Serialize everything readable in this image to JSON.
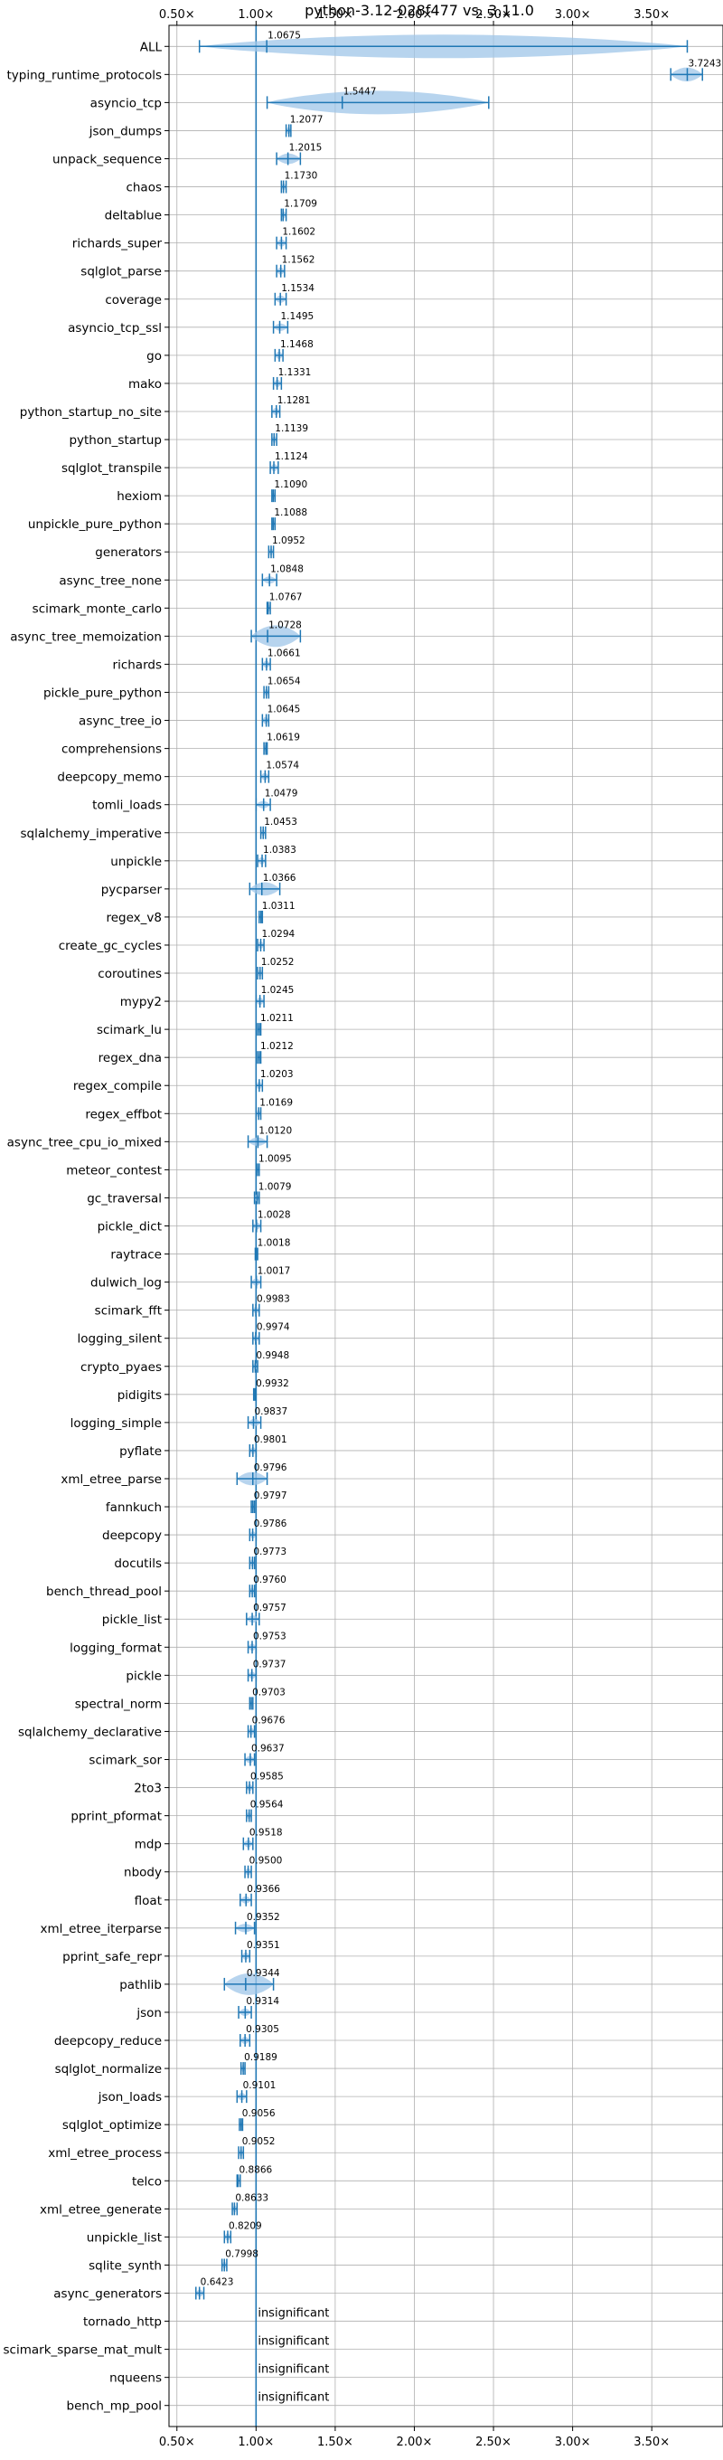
{
  "chart_data": {
    "type": "violin",
    "title": "python-3.12-028f477 vs. 3.11.0",
    "xlim": [
      0.45,
      3.95
    ],
    "xticks": [
      0.5,
      1.0,
      1.5,
      2.0,
      2.5,
      3.0,
      3.5
    ],
    "xtick_labels": [
      "0.50×",
      "1.00×",
      "1.50×",
      "2.00×",
      "2.50×",
      "3.00×",
      "3.50×"
    ],
    "reference_line": 1.0,
    "grid": true,
    "color": "#1f77b4",
    "fill_color": "#9fc5e8",
    "benchmarks": [
      {
        "name": "ALL",
        "label": "1.0675",
        "mean": 1.0675,
        "min": 0.6423,
        "max": 3.7243
      },
      {
        "name": "typing_runtime_protocols",
        "label": "3.7243",
        "mean": 3.7243,
        "min": 3.62,
        "max": 3.82
      },
      {
        "name": "asyncio_tcp",
        "label": "1.5447",
        "mean": 1.5447,
        "min": 1.07,
        "max": 2.47
      },
      {
        "name": "json_dumps",
        "label": "1.2077",
        "mean": 1.2077,
        "min": 1.19,
        "max": 1.22
      },
      {
        "name": "unpack_sequence",
        "label": "1.2015",
        "mean": 1.2015,
        "min": 1.13,
        "max": 1.28
      },
      {
        "name": "chaos",
        "label": "1.1730",
        "mean": 1.173,
        "min": 1.16,
        "max": 1.19
      },
      {
        "name": "deltablue",
        "label": "1.1709",
        "mean": 1.1709,
        "min": 1.16,
        "max": 1.19
      },
      {
        "name": "richards_super",
        "label": "1.1602",
        "mean": 1.1602,
        "min": 1.13,
        "max": 1.19
      },
      {
        "name": "sqlglot_parse",
        "label": "1.1562",
        "mean": 1.1562,
        "min": 1.13,
        "max": 1.18
      },
      {
        "name": "coverage",
        "label": "1.1534",
        "mean": 1.1534,
        "min": 1.12,
        "max": 1.19
      },
      {
        "name": "asyncio_tcp_ssl",
        "label": "1.1495",
        "mean": 1.1495,
        "min": 1.11,
        "max": 1.2
      },
      {
        "name": "go",
        "label": "1.1468",
        "mean": 1.1468,
        "min": 1.12,
        "max": 1.17
      },
      {
        "name": "mako",
        "label": "1.1331",
        "mean": 1.1331,
        "min": 1.11,
        "max": 1.16
      },
      {
        "name": "python_startup_no_site",
        "label": "1.1281",
        "mean": 1.1281,
        "min": 1.1,
        "max": 1.15
      },
      {
        "name": "python_startup",
        "label": "1.1139",
        "mean": 1.1139,
        "min": 1.1,
        "max": 1.13
      },
      {
        "name": "sqlglot_transpile",
        "label": "1.1124",
        "mean": 1.1124,
        "min": 1.09,
        "max": 1.14
      },
      {
        "name": "hexiom",
        "label": "1.1090",
        "mean": 1.109,
        "min": 1.1,
        "max": 1.12
      },
      {
        "name": "unpickle_pure_python",
        "label": "1.1088",
        "mean": 1.1088,
        "min": 1.1,
        "max": 1.12
      },
      {
        "name": "generators",
        "label": "1.0952",
        "mean": 1.0952,
        "min": 1.08,
        "max": 1.11
      },
      {
        "name": "async_tree_none",
        "label": "1.0848",
        "mean": 1.0848,
        "min": 1.04,
        "max": 1.13
      },
      {
        "name": "scimark_monte_carlo",
        "label": "1.0767",
        "mean": 1.0767,
        "min": 1.07,
        "max": 1.09
      },
      {
        "name": "async_tree_memoization",
        "label": "1.0728",
        "mean": 1.0728,
        "min": 0.97,
        "max": 1.28
      },
      {
        "name": "richards",
        "label": "1.0661",
        "mean": 1.0661,
        "min": 1.04,
        "max": 1.09
      },
      {
        "name": "pickle_pure_python",
        "label": "1.0654",
        "mean": 1.0654,
        "min": 1.05,
        "max": 1.08
      },
      {
        "name": "async_tree_io",
        "label": "1.0645",
        "mean": 1.0645,
        "min": 1.04,
        "max": 1.08
      },
      {
        "name": "comprehensions",
        "label": "1.0619",
        "mean": 1.0619,
        "min": 1.05,
        "max": 1.07
      },
      {
        "name": "deepcopy_memo",
        "label": "1.0574",
        "mean": 1.0574,
        "min": 1.03,
        "max": 1.08
      },
      {
        "name": "tomli_loads",
        "label": "1.0479",
        "mean": 1.0479,
        "min": 1.0,
        "max": 1.09
      },
      {
        "name": "sqlalchemy_imperative",
        "label": "1.0453",
        "mean": 1.0453,
        "min": 1.03,
        "max": 1.06
      },
      {
        "name": "unpickle",
        "label": "1.0383",
        "mean": 1.0383,
        "min": 1.01,
        "max": 1.06
      },
      {
        "name": "pycparser",
        "label": "1.0366",
        "mean": 1.0366,
        "min": 0.96,
        "max": 1.15
      },
      {
        "name": "regex_v8",
        "label": "1.0311",
        "mean": 1.0311,
        "min": 1.02,
        "max": 1.04
      },
      {
        "name": "create_gc_cycles",
        "label": "1.0294",
        "mean": 1.0294,
        "min": 1.01,
        "max": 1.05
      },
      {
        "name": "coroutines",
        "label": "1.0252",
        "mean": 1.0252,
        "min": 1.01,
        "max": 1.04
      },
      {
        "name": "mypy2",
        "label": "1.0245",
        "mean": 1.0245,
        "min": 1.0,
        "max": 1.05
      },
      {
        "name": "scimark_lu",
        "label": "1.0211",
        "mean": 1.0211,
        "min": 1.01,
        "max": 1.03
      },
      {
        "name": "regex_dna",
        "label": "1.0212",
        "mean": 1.0212,
        "min": 1.01,
        "max": 1.03
      },
      {
        "name": "regex_compile",
        "label": "1.0203",
        "mean": 1.0203,
        "min": 1.0,
        "max": 1.04
      },
      {
        "name": "regex_effbot",
        "label": "1.0169",
        "mean": 1.0169,
        "min": 1.0,
        "max": 1.03
      },
      {
        "name": "async_tree_cpu_io_mixed",
        "label": "1.0120",
        "mean": 1.012,
        "min": 0.95,
        "max": 1.07
      },
      {
        "name": "meteor_contest",
        "label": "1.0095",
        "mean": 1.0095,
        "min": 1.0,
        "max": 1.02
      },
      {
        "name": "gc_traversal",
        "label": "1.0079",
        "mean": 1.0079,
        "min": 0.99,
        "max": 1.02
      },
      {
        "name": "pickle_dict",
        "label": "1.0028",
        "mean": 1.0028,
        "min": 0.98,
        "max": 1.03
      },
      {
        "name": "raytrace",
        "label": "1.0018",
        "mean": 1.0018,
        "min": 0.995,
        "max": 1.01
      },
      {
        "name": "dulwich_log",
        "label": "1.0017",
        "mean": 1.0017,
        "min": 0.97,
        "max": 1.03
      },
      {
        "name": "scimark_fft",
        "label": "0.9983",
        "mean": 0.9983,
        "min": 0.98,
        "max": 1.02
      },
      {
        "name": "logging_silent",
        "label": "0.9974",
        "mean": 0.9974,
        "min": 0.98,
        "max": 1.02
      },
      {
        "name": "crypto_pyaes",
        "label": "0.9948",
        "mean": 0.9948,
        "min": 0.98,
        "max": 1.01
      },
      {
        "name": "pidigits",
        "label": "0.9932",
        "mean": 0.9932,
        "min": 0.985,
        "max": 1.0
      },
      {
        "name": "logging_simple",
        "label": "0.9837",
        "mean": 0.9837,
        "min": 0.95,
        "max": 1.03
      },
      {
        "name": "pyflate",
        "label": "0.9801",
        "mean": 0.9801,
        "min": 0.96,
        "max": 1.0
      },
      {
        "name": "xml_etree_parse",
        "label": "0.9796",
        "mean": 0.9796,
        "min": 0.88,
        "max": 1.07
      },
      {
        "name": "fannkuch",
        "label": "0.9797",
        "mean": 0.9797,
        "min": 0.97,
        "max": 0.99
      },
      {
        "name": "deepcopy",
        "label": "0.9786",
        "mean": 0.9786,
        "min": 0.96,
        "max": 1.0
      },
      {
        "name": "docutils",
        "label": "0.9773",
        "mean": 0.9773,
        "min": 0.96,
        "max": 0.99
      },
      {
        "name": "bench_thread_pool",
        "label": "0.9760",
        "mean": 0.976,
        "min": 0.96,
        "max": 0.99
      },
      {
        "name": "pickle_list",
        "label": "0.9757",
        "mean": 0.9757,
        "min": 0.94,
        "max": 1.02
      },
      {
        "name": "logging_format",
        "label": "0.9753",
        "mean": 0.9753,
        "min": 0.95,
        "max": 1.0
      },
      {
        "name": "pickle",
        "label": "0.9737",
        "mean": 0.9737,
        "min": 0.95,
        "max": 1.0
      },
      {
        "name": "spectral_norm",
        "label": "0.9703",
        "mean": 0.9703,
        "min": 0.96,
        "max": 0.98
      },
      {
        "name": "sqlalchemy_declarative",
        "label": "0.9676",
        "mean": 0.9676,
        "min": 0.95,
        "max": 0.99
      },
      {
        "name": "scimark_sor",
        "label": "0.9637",
        "mean": 0.9637,
        "min": 0.93,
        "max": 0.99
      },
      {
        "name": "2to3",
        "label": "0.9585",
        "mean": 0.9585,
        "min": 0.94,
        "max": 0.98
      },
      {
        "name": "pprint_pformat",
        "label": "0.9564",
        "mean": 0.9564,
        "min": 0.94,
        "max": 0.97
      },
      {
        "name": "mdp",
        "label": "0.9518",
        "mean": 0.9518,
        "min": 0.92,
        "max": 0.98
      },
      {
        "name": "nbody",
        "label": "0.9500",
        "mean": 0.95,
        "min": 0.93,
        "max": 0.97
      },
      {
        "name": "float",
        "label": "0.9366",
        "mean": 0.9366,
        "min": 0.9,
        "max": 0.97
      },
      {
        "name": "xml_etree_iterparse",
        "label": "0.9352",
        "mean": 0.9352,
        "min": 0.87,
        "max": 0.99
      },
      {
        "name": "pprint_safe_repr",
        "label": "0.9351",
        "mean": 0.9351,
        "min": 0.91,
        "max": 0.96
      },
      {
        "name": "pathlib",
        "label": "0.9344",
        "mean": 0.9344,
        "min": 0.8,
        "max": 1.11
      },
      {
        "name": "json",
        "label": "0.9314",
        "mean": 0.9314,
        "min": 0.89,
        "max": 0.97
      },
      {
        "name": "deepcopy_reduce",
        "label": "0.9305",
        "mean": 0.9305,
        "min": 0.9,
        "max": 0.96
      },
      {
        "name": "sqlglot_normalize",
        "label": "0.9189",
        "mean": 0.9189,
        "min": 0.905,
        "max": 0.93
      },
      {
        "name": "json_loads",
        "label": "0.9101",
        "mean": 0.9101,
        "min": 0.88,
        "max": 0.94
      },
      {
        "name": "sqlglot_optimize",
        "label": "0.9056",
        "mean": 0.9056,
        "min": 0.895,
        "max": 0.915
      },
      {
        "name": "xml_etree_process",
        "label": "0.9052",
        "mean": 0.9052,
        "min": 0.89,
        "max": 0.92
      },
      {
        "name": "telco",
        "label": "0.8866",
        "mean": 0.8866,
        "min": 0.88,
        "max": 0.9
      },
      {
        "name": "xml_etree_generate",
        "label": "0.8633",
        "mean": 0.8633,
        "min": 0.85,
        "max": 0.88
      },
      {
        "name": "unpickle_list",
        "label": "0.8209",
        "mean": 0.8209,
        "min": 0.8,
        "max": 0.84
      },
      {
        "name": "sqlite_synth",
        "label": "0.7998",
        "mean": 0.7998,
        "min": 0.785,
        "max": 0.815
      },
      {
        "name": "async_generators",
        "label": "0.6423",
        "mean": 0.6423,
        "min": 0.62,
        "max": 0.67
      },
      {
        "name": "tornado_http",
        "label": "insignificant",
        "mean": null,
        "min": null,
        "max": null
      },
      {
        "name": "scimark_sparse_mat_mult",
        "label": "insignificant",
        "mean": null,
        "min": null,
        "max": null
      },
      {
        "name": "nqueens",
        "label": "insignificant",
        "mean": null,
        "min": null,
        "max": null
      },
      {
        "name": "bench_mp_pool",
        "label": "insignificant",
        "mean": null,
        "min": null,
        "max": null
      }
    ]
  }
}
